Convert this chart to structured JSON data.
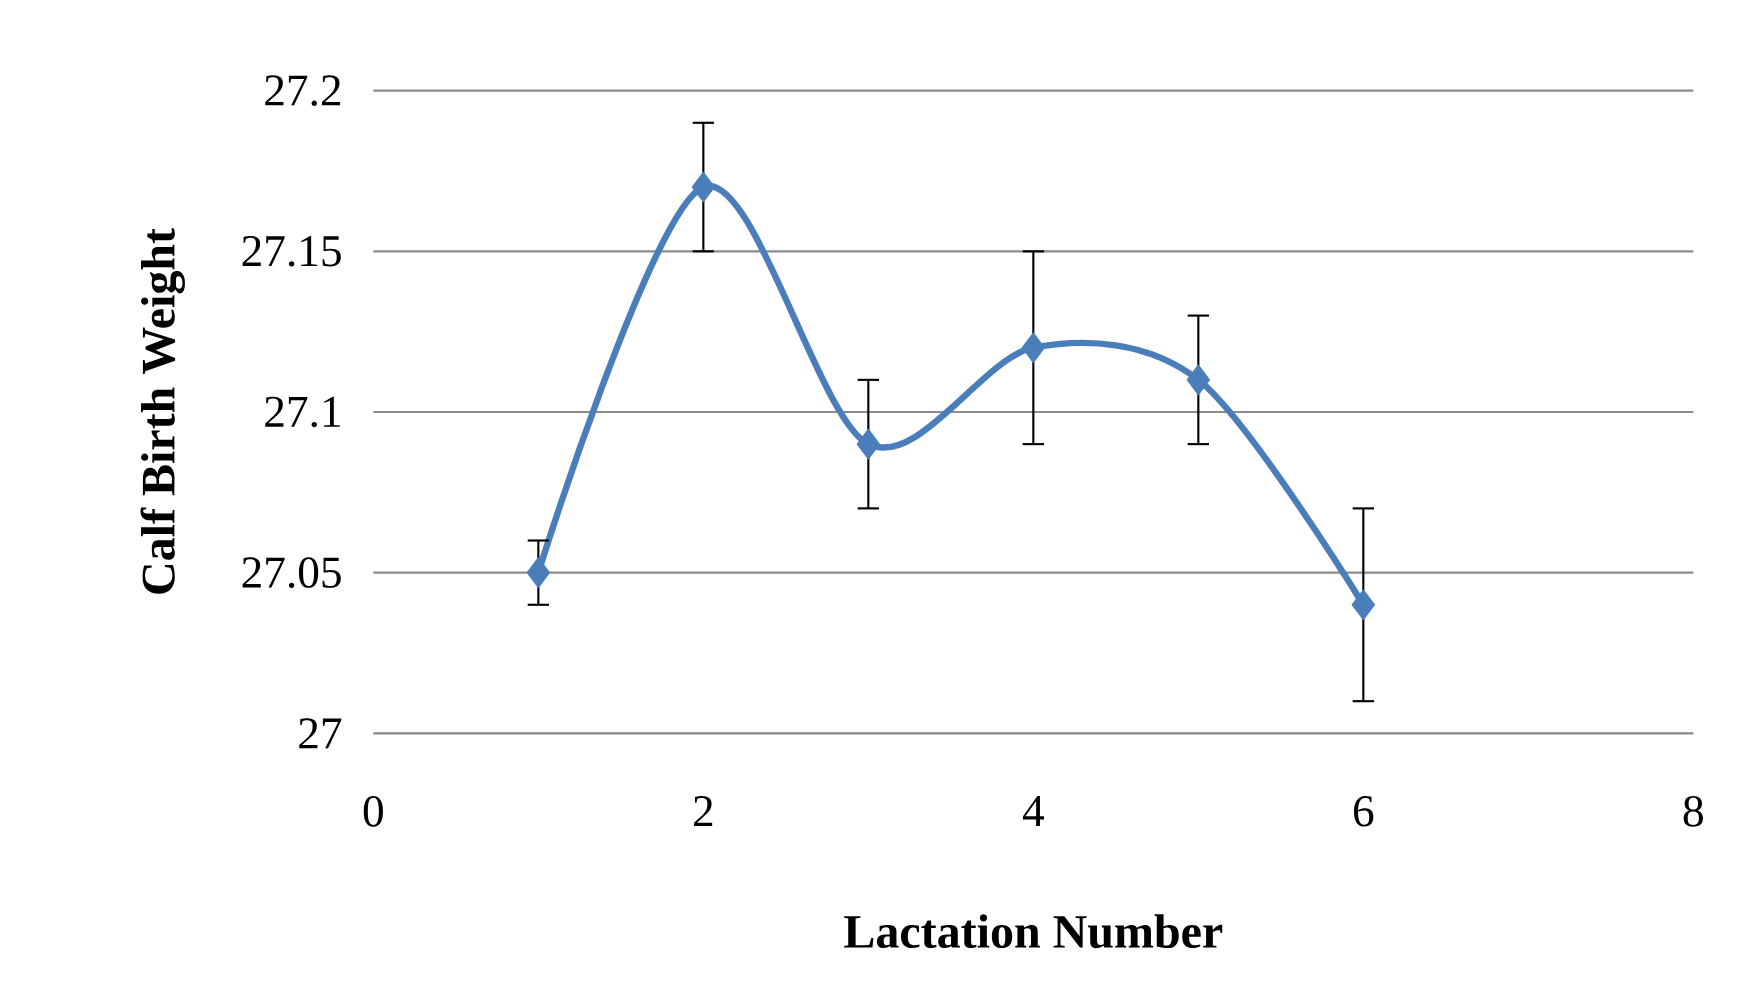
{
  "chart_data": {
    "type": "line",
    "xlabel": "Lactation Number",
    "ylabel": "Calf Birth Weight",
    "x": [
      1,
      2,
      3,
      4,
      5,
      6
    ],
    "series": [
      {
        "color": "#4a7ebb",
        "values": [
          27.05,
          27.17,
          27.09,
          27.12,
          27.11,
          27.04
        ],
        "errors": [
          0.01,
          0.02,
          0.02,
          0.03,
          0.02,
          0.03
        ]
      }
    ],
    "xlim": [
      0,
      8
    ],
    "xticks": [
      0,
      2,
      4,
      6,
      8
    ],
    "ylim": [
      27,
      27.2
    ],
    "yticks": [
      27,
      27.05,
      27.1,
      27.15,
      27.2
    ],
    "grid": "y",
    "marker": "diamond",
    "line_style": "solid"
  }
}
